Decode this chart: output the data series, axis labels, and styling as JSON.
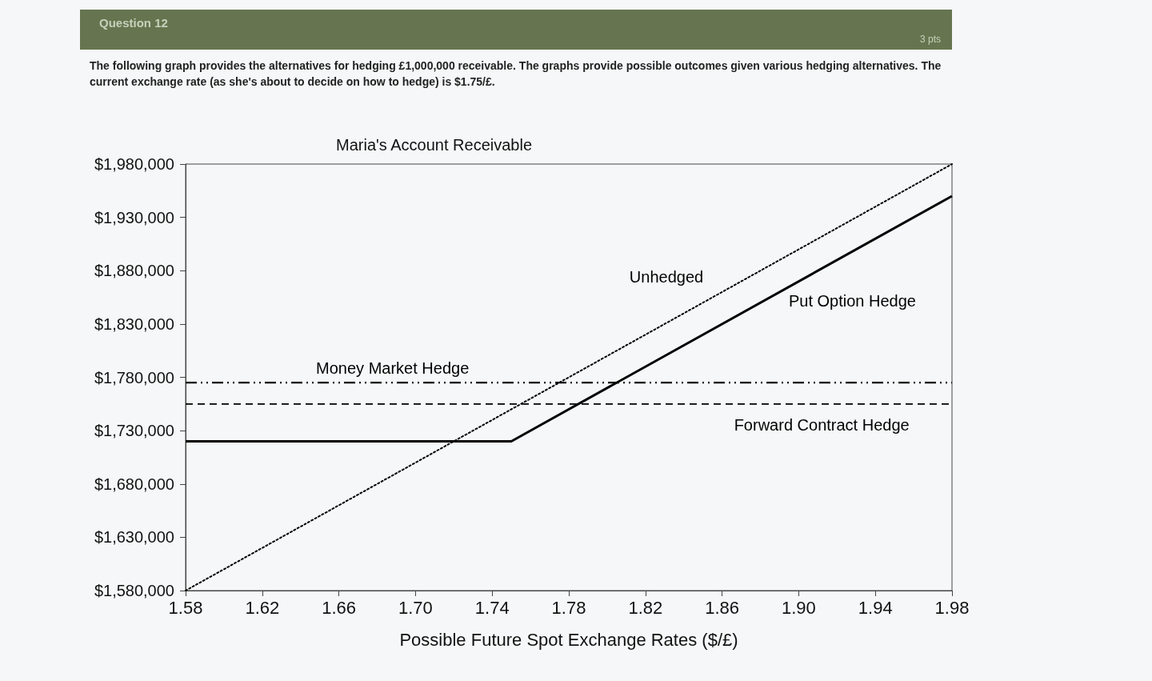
{
  "chart_data": {
    "type": "line",
    "title": "Maria's Account Receivable",
    "xlabel": "Possible Future Spot Exchange Rates ($/£)",
    "annotations": [
      "Question 12",
      "3 pts",
      "The following graph provides the alternatives for hedging £1,000,000 receivable. The graphs provide possible outcomes given various hedging alternatives. The current exchange rate (as she's about to decide on how to hedge) is $1.75/£."
    ],
    "xlim": [
      1.58,
      1.98
    ],
    "xticks": [
      1.58,
      1.62,
      1.66,
      {
        "value": 1.7,
        "label": "1.70"
      },
      1.74,
      1.78,
      1.82,
      1.86,
      {
        "value": 1.9,
        "label": "1.90"
      },
      1.94,
      1.98
    ],
    "ylim": [
      1580000,
      1980000
    ],
    "yticks": [
      {
        "value": 1580000,
        "label": "$1,580,000"
      },
      {
        "value": 1630000,
        "label": "$1,630,000"
      },
      {
        "value": 1680000,
        "label": "$1,680,000"
      },
      {
        "value": 1730000,
        "label": "$1,730,000"
      },
      {
        "value": 1780000,
        "label": "$1,780,000"
      },
      {
        "value": 1830000,
        "label": "$1,830,000"
      },
      {
        "value": 1880000,
        "label": "$1,880,000"
      },
      {
        "value": 1930000,
        "label": "$1,930,000"
      },
      {
        "value": 1980000,
        "label": "$1,980,000"
      }
    ],
    "grid": false,
    "marker": "none",
    "series": [
      {
        "name": "Unhedged",
        "color": "#000000",
        "line_style": "dotted",
        "x": [
          1.58,
          1.98
        ],
        "values": [
          1580000,
          1980000
        ]
      },
      {
        "name": "Put Option Hedge",
        "color": "#000000",
        "line_style": "solid",
        "x": [
          1.58,
          1.75,
          1.98
        ],
        "values": [
          1720000,
          1720000,
          1950000
        ]
      },
      {
        "name": "Forward Contract Hedge",
        "color": "#000000",
        "line_style": "dashed",
        "x": [
          1.58,
          1.98
        ],
        "values": [
          1755000,
          1755000
        ]
      },
      {
        "name": "Money Market Hedge",
        "color": "#000000",
        "line_style": "dashdot",
        "x": [
          1.58,
          1.98
        ],
        "values": [
          1775000,
          1775000
        ]
      }
    ]
  }
}
